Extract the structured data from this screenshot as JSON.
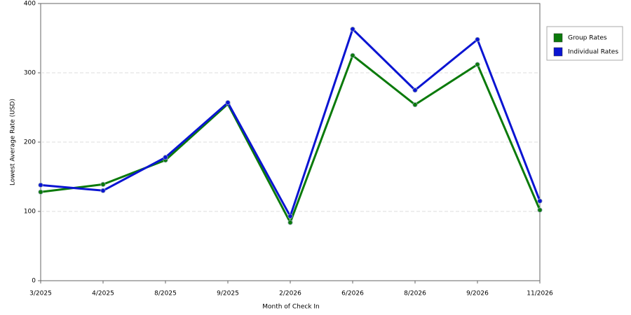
{
  "chart_data": {
    "type": "line",
    "x_label": "Month of Check In",
    "y_label": "Lowest Average Rate (USD)",
    "categories": [
      "3/2025",
      "4/2025",
      "8/2025",
      "9/2025",
      "2/2026",
      "6/2026",
      "8/2026",
      "9/2026",
      "11/2026"
    ],
    "series": [
      {
        "name": "Group Rates",
        "color": "#0b7a0b",
        "values": [
          128,
          139,
          174,
          255,
          84,
          325,
          254,
          312,
          102
        ]
      },
      {
        "name": "Individual Rates",
        "color": "#0a14d2",
        "values": [
          138,
          130,
          178,
          257,
          93,
          363,
          275,
          348,
          115
        ]
      }
    ],
    "ylim": [
      0,
      400
    ],
    "yticks": [
      0,
      100,
      200,
      300,
      400
    ],
    "grid": true,
    "legend": "right"
  }
}
